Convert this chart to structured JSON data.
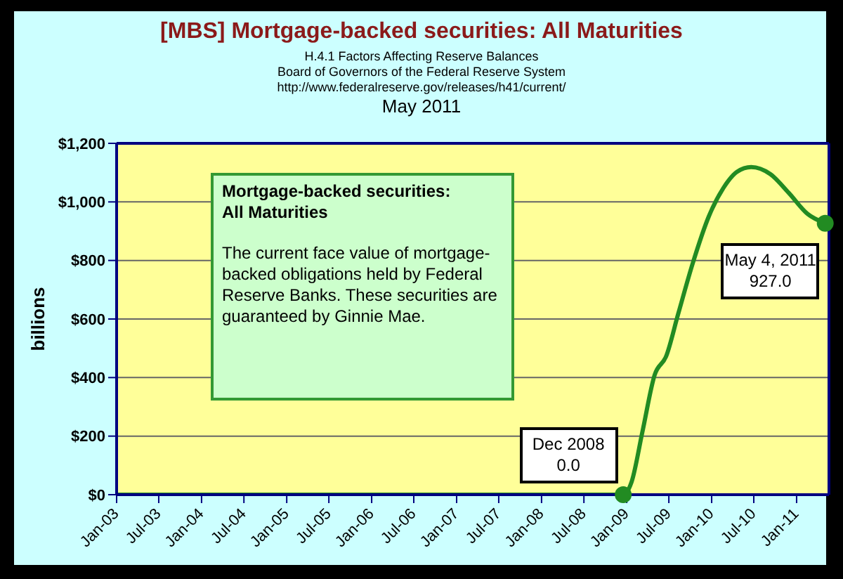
{
  "chart_data": {
    "type": "line",
    "title": "[MBS] Mortgage-backed securities: All Maturities",
    "subtitle": "H.4.1 Factors Affecting Reserve Balances\nBoard of Governors of the Federal Reserve System\nhttp://www.federalreserve.gov/releases/h41/current/",
    "ylabel": "billions",
    "x": [
      "2003-01-01",
      "2008-12-17",
      "2009-01-22",
      "2009-03-10",
      "2009-05-01",
      "2009-06-20",
      "2009-08-10",
      "2009-10-12",
      "2009-12-20",
      "2010-02-20",
      "2010-04-20",
      "2010-06-20",
      "2010-09-10",
      "2010-11-28",
      "2011-02-17",
      "2011-05-04"
    ],
    "series": [
      {
        "color": "#228b22",
        "values": [
          0,
          0,
          44,
          217,
          409,
          474,
          617,
          791,
          951,
          1047,
          1103,
          1119,
          1095,
          1031,
          959,
          927
        ]
      }
    ],
    "xlim": [
      "2003-01-01",
      "2011-05-20"
    ],
    "xticks": [
      {
        "value": "2003-01",
        "label": "Jan-03"
      },
      {
        "value": "2003-07",
        "label": "Jul-03"
      },
      {
        "value": "2004-01",
        "label": "Jan-04"
      },
      {
        "value": "2004-07",
        "label": "Jul-04"
      },
      {
        "value": "2005-01",
        "label": "Jan-05"
      },
      {
        "value": "2005-07",
        "label": "Jul-05"
      },
      {
        "value": "2006-01",
        "label": "Jan-06"
      },
      {
        "value": "2006-07",
        "label": "Jul-06"
      },
      {
        "value": "2007-01",
        "label": "Jan-07"
      },
      {
        "value": "2007-07",
        "label": "Jul-07"
      },
      {
        "value": "2008-01",
        "label": "Jan-08"
      },
      {
        "value": "2008-07",
        "label": "Jul-08"
      },
      {
        "value": "2009-01",
        "label": "Jan-09"
      },
      {
        "value": "2009-07",
        "label": "Jul-09"
      },
      {
        "value": "2010-01",
        "label": "Jan-10"
      },
      {
        "value": "2010-07",
        "label": "Jul-10"
      },
      {
        "value": "2011-01",
        "label": "Jan-11"
      }
    ],
    "ylim": [
      0,
      1200
    ],
    "yticks": [
      {
        "value": 0,
        "label": "$0"
      },
      {
        "value": 200,
        "label": "$200"
      },
      {
        "value": 400,
        "label": "$400"
      },
      {
        "value": 600,
        "label": "$600"
      },
      {
        "value": 800,
        "label": "$800"
      },
      {
        "value": 1000,
        "label": "$1,000"
      },
      {
        "value": 1200,
        "label": "$1,200"
      }
    ],
    "grid": "y",
    "marker": "none",
    "line_style": "solid",
    "annotations": [
      "May 2011",
      "Mortgage-backed securities:\nAll Maturities",
      "The current face value of mortgage-backed obligations held by Federal Reserve Banks. These securities are guaranteed by Ginnie Mae.",
      {
        "text": "Dec 2008\n0.0",
        "x": "2008-12-17",
        "y": 0
      },
      {
        "text": "May 4, 2011\n927.0",
        "x": "2011-05-04",
        "y": 927
      }
    ]
  }
}
